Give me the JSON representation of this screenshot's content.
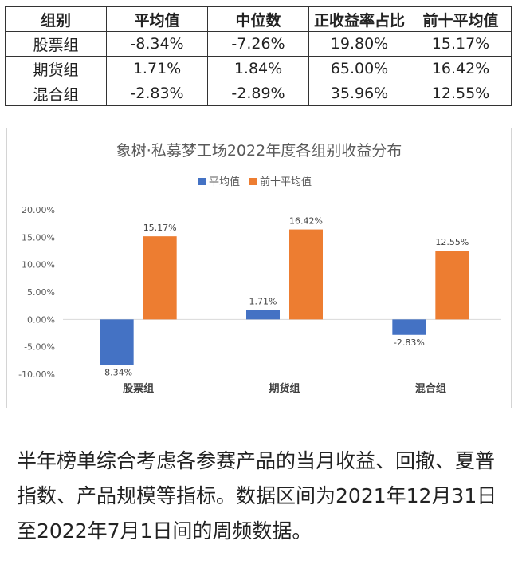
{
  "table": {
    "headers": [
      "组别",
      "平均值",
      "中位数",
      "正收益率占比",
      "前十平均值"
    ],
    "rows": [
      [
        "股票组",
        "-8.34%",
        "-7.26%",
        "19.80%",
        "15.17%"
      ],
      [
        "期货组",
        "1.71%",
        "1.84%",
        "65.00%",
        "16.42%"
      ],
      [
        "混合组",
        "-2.83%",
        "-2.89%",
        "35.96%",
        "12.55%"
      ]
    ]
  },
  "chart_data": {
    "type": "bar",
    "title": "象树·私募梦工场2022年度各组别收益分布",
    "categories": [
      "股票组",
      "期货组",
      "混合组"
    ],
    "series": [
      {
        "name": "平均值",
        "values": [
          -8.34,
          1.71,
          -2.83
        ],
        "labels": [
          "-8.34%",
          "1.71%",
          "-2.83%"
        ],
        "color": "#4472C4"
      },
      {
        "name": "前十平均值",
        "values": [
          15.17,
          16.42,
          12.55
        ],
        "labels": [
          "15.17%",
          "16.42%",
          "12.55%"
        ],
        "color": "#ED7D31"
      }
    ],
    "ylim": [
      -10,
      20
    ],
    "yticks": [
      20,
      15,
      10,
      5,
      0,
      -5,
      -10
    ],
    "ytick_labels": [
      "20.00%",
      "15.00%",
      "10.00%",
      "5.00%",
      "0.00%",
      "-5.00%",
      "-10.00%"
    ],
    "legend": "top-center",
    "grid": false
  },
  "note": "半年榜单综合考虑各参赛产品的当月收益、回撤、夏普指数、产品规模等指标。数据区间为2021年12月31日至2022年7月1日间的周频数据。"
}
